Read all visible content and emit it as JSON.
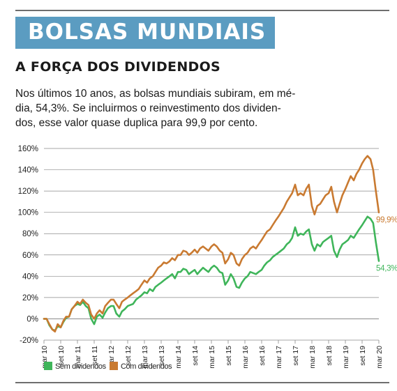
{
  "header": {
    "banner_title": "BOLSAS MUNDIAIS",
    "subtitle": "A FORÇA DOS DIVIDENDOS",
    "description_lines": [
      "Nos últimos 10 anos, as bolsas mundiais subiram, em mé-",
      "dia, 54,3%. Se incluirmos o reinvestimento dos dividen-",
      "dos, esse valor quase duplica para 99,9 por cento."
    ]
  },
  "colors": {
    "banner": "#5b9cc1",
    "sem_dividendos": "#3fb55a",
    "com_dividendos": "#c97a31",
    "grid": "#8a8a8a"
  },
  "chart_data": {
    "type": "line",
    "grid": true,
    "legend_position": "bottom-left",
    "y_unit": "%",
    "ylim": [
      -20,
      160
    ],
    "yticks": [
      -20,
      0,
      20,
      40,
      60,
      80,
      100,
      120,
      140,
      160
    ],
    "ytick_labels": [
      "-20%",
      "0%",
      "20%",
      "40%",
      "60%",
      "80%",
      "100%",
      "120%",
      "140%",
      "160%"
    ],
    "xlim": [
      2010.17,
      2020.17
    ],
    "xticks": [
      2010.17,
      2010.67,
      2011.17,
      2011.67,
      2012.17,
      2012.67,
      2013.17,
      2013.67,
      2014.17,
      2014.67,
      2015.17,
      2015.67,
      2016.17,
      2016.67,
      2017.17,
      2017.67,
      2018.17,
      2018.67,
      2019.17,
      2019.67,
      2020.17
    ],
    "xtick_labels": [
      "mar 10",
      "set 10",
      "mar 11",
      "set 11",
      "mar 12",
      "set 12",
      "mar 13",
      "set 13",
      "mar 14",
      "set 14",
      "mar 15",
      "set 15",
      "mar 16",
      "set 16",
      "mar 17",
      "set 17",
      "mar 18",
      "set 18",
      "mar 19",
      "set 19",
      "mar 20"
    ],
    "series": [
      {
        "name": "Sem dividendos",
        "color": "#3fb55a",
        "end_label": "54,3%",
        "x": [
          2010.17,
          2010.25,
          2010.33,
          2010.42,
          2010.5,
          2010.58,
          2010.67,
          2010.75,
          2010.83,
          2010.92,
          2011.0,
          2011.08,
          2011.17,
          2011.25,
          2011.33,
          2011.42,
          2011.5,
          2011.58,
          2011.67,
          2011.75,
          2011.83,
          2011.92,
          2012.0,
          2012.08,
          2012.17,
          2012.25,
          2012.33,
          2012.42,
          2012.5,
          2012.58,
          2012.67,
          2012.75,
          2012.83,
          2012.92,
          2013.0,
          2013.08,
          2013.17,
          2013.25,
          2013.33,
          2013.42,
          2013.5,
          2013.58,
          2013.67,
          2013.75,
          2013.83,
          2013.92,
          2014.0,
          2014.08,
          2014.17,
          2014.25,
          2014.33,
          2014.42,
          2014.5,
          2014.58,
          2014.67,
          2014.75,
          2014.83,
          2014.92,
          2015.0,
          2015.08,
          2015.17,
          2015.25,
          2015.33,
          2015.42,
          2015.5,
          2015.58,
          2015.67,
          2015.75,
          2015.83,
          2015.92,
          2016.0,
          2016.08,
          2016.17,
          2016.25,
          2016.33,
          2016.42,
          2016.5,
          2016.58,
          2016.67,
          2016.75,
          2016.83,
          2016.92,
          2017.0,
          2017.08,
          2017.17,
          2017.25,
          2017.33,
          2017.42,
          2017.5,
          2017.58,
          2017.67,
          2017.75,
          2017.83,
          2017.92,
          2018.0,
          2018.08,
          2018.17,
          2018.25,
          2018.33,
          2018.42,
          2018.5,
          2018.58,
          2018.67,
          2018.75,
          2018.83,
          2018.92,
          2019.0,
          2019.08,
          2019.17,
          2019.25,
          2019.33,
          2019.42,
          2019.5,
          2019.58,
          2019.67,
          2019.75,
          2019.83,
          2019.92,
          2020.0,
          2020.08,
          2020.17
        ],
        "y": [
          0,
          0,
          -6,
          -10,
          -11,
          -7,
          -8,
          -3,
          1,
          2,
          9,
          12,
          14,
          13,
          16,
          12,
          10,
          0,
          -5,
          2,
          4,
          1,
          6,
          10,
          12,
          12,
          5,
          2,
          7,
          9,
          12,
          13,
          14,
          18,
          20,
          22,
          25,
          24,
          28,
          26,
          30,
          32,
          34,
          36,
          38,
          40,
          42,
          38,
          44,
          44,
          47,
          46,
          42,
          44,
          46,
          42,
          45,
          48,
          46,
          44,
          48,
          50,
          48,
          44,
          43,
          32,
          36,
          42,
          38,
          30,
          29,
          34,
          38,
          40,
          44,
          43,
          42,
          44,
          46,
          50,
          53,
          55,
          58,
          60,
          62,
          64,
          66,
          70,
          72,
          76,
          86,
          78,
          80,
          79,
          82,
          84,
          70,
          64,
          70,
          68,
          72,
          74,
          76,
          78,
          64,
          58,
          65,
          70,
          72,
          74,
          78,
          76,
          80,
          84,
          88,
          92,
          96,
          94,
          90,
          72,
          54.3
        ]
      },
      {
        "name": "Com dividendos",
        "color": "#c97a31",
        "end_label": "99,9%",
        "x": [
          2010.17,
          2010.25,
          2010.33,
          2010.42,
          2010.5,
          2010.58,
          2010.67,
          2010.75,
          2010.83,
          2010.92,
          2011.0,
          2011.08,
          2011.17,
          2011.25,
          2011.33,
          2011.42,
          2011.5,
          2011.58,
          2011.67,
          2011.75,
          2011.83,
          2011.92,
          2012.0,
          2012.08,
          2012.17,
          2012.25,
          2012.33,
          2012.42,
          2012.5,
          2012.58,
          2012.67,
          2012.75,
          2012.83,
          2012.92,
          2013.0,
          2013.08,
          2013.17,
          2013.25,
          2013.33,
          2013.42,
          2013.5,
          2013.58,
          2013.67,
          2013.75,
          2013.83,
          2013.92,
          2014.0,
          2014.08,
          2014.17,
          2014.25,
          2014.33,
          2014.42,
          2014.5,
          2014.58,
          2014.67,
          2014.75,
          2014.83,
          2014.92,
          2015.0,
          2015.08,
          2015.17,
          2015.25,
          2015.33,
          2015.42,
          2015.5,
          2015.58,
          2015.67,
          2015.75,
          2015.83,
          2015.92,
          2016.0,
          2016.08,
          2016.17,
          2016.25,
          2016.33,
          2016.42,
          2016.5,
          2016.58,
          2016.67,
          2016.75,
          2016.83,
          2016.92,
          2017.0,
          2017.08,
          2017.17,
          2017.25,
          2017.33,
          2017.42,
          2017.5,
          2017.58,
          2017.67,
          2017.75,
          2017.83,
          2017.92,
          2018.0,
          2018.08,
          2018.17,
          2018.25,
          2018.33,
          2018.42,
          2018.5,
          2018.58,
          2018.67,
          2018.75,
          2018.83,
          2018.92,
          2019.0,
          2019.08,
          2019.17,
          2019.25,
          2019.33,
          2019.42,
          2019.5,
          2019.58,
          2019.67,
          2019.75,
          2019.83,
          2019.92,
          2020.0,
          2020.08,
          2020.17
        ],
        "y": [
          0,
          0,
          -5,
          -10,
          -12,
          -5,
          -8,
          -2,
          2,
          2,
          9,
          12,
          16,
          14,
          18,
          15,
          13,
          4,
          0,
          5,
          8,
          5,
          12,
          15,
          18,
          18,
          14,
          10,
          16,
          18,
          20,
          22,
          24,
          26,
          28,
          32,
          36,
          34,
          38,
          40,
          44,
          48,
          50,
          53,
          52,
          54,
          57,
          55,
          60,
          60,
          64,
          63,
          60,
          62,
          65,
          62,
          66,
          68,
          66,
          64,
          68,
          70,
          68,
          64,
          62,
          52,
          56,
          62,
          60,
          52,
          50,
          56,
          60,
          62,
          66,
          68,
          66,
          70,
          74,
          78,
          82,
          84,
          88,
          92,
          96,
          100,
          104,
          110,
          114,
          118,
          126,
          116,
          118,
          116,
          122,
          126,
          106,
          98,
          106,
          108,
          112,
          116,
          118,
          124,
          110,
          100,
          108,
          116,
          122,
          128,
          134,
          130,
          136,
          140,
          146,
          150,
          153,
          150,
          140,
          120,
          99.9
        ]
      }
    ]
  }
}
